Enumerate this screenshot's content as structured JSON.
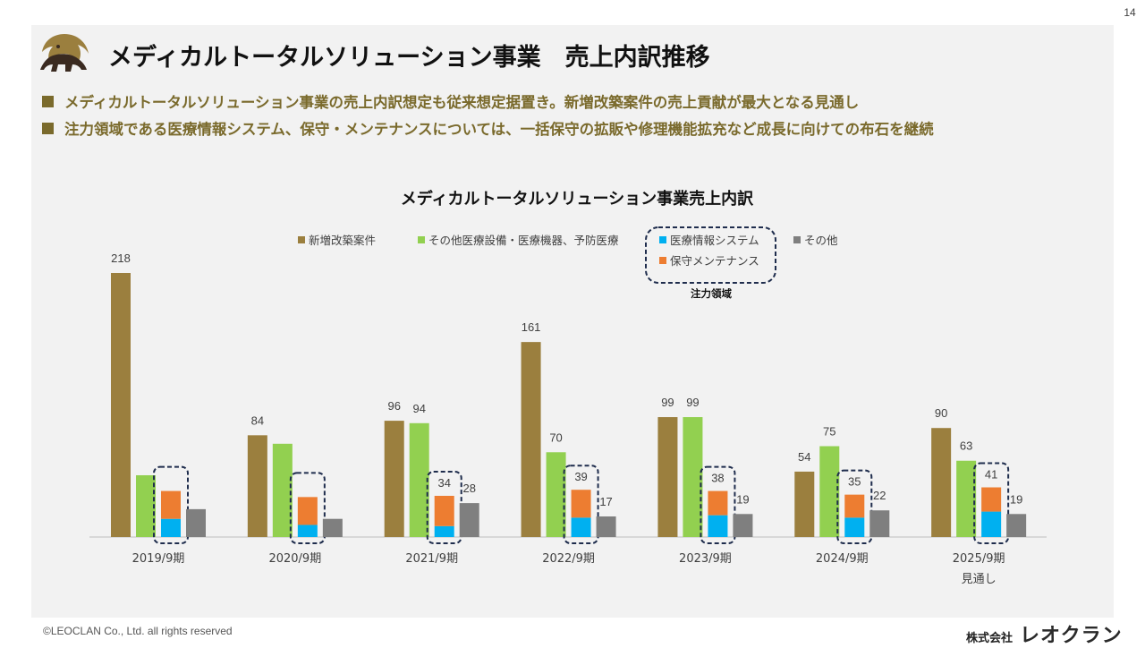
{
  "page_number": "14",
  "header": {
    "title": "メディカルトータルソリューション事業　売上内訳推移"
  },
  "bullets": [
    "メディカルトータルソリューション事業の売上内訳想定も従来想定据置き。新増改築案件の売上貢献が最大となる見通し",
    "注力領域である医療情報システム、保守・メンテナンスについては、一括保守の拡販や修理機能拡充など成長に向けての布石を継続"
  ],
  "focus_label": "注力領域",
  "footer": {
    "copyright": "©LEOCLAN Co., Ltd. all rights reserved",
    "brand_prefix": "株式会社",
    "brand_name": "レオクラン"
  },
  "chart_data": {
    "type": "bar",
    "title": "メディカルトータルソリューション事業売上内訳",
    "categories": [
      "2019/9期",
      "2020/9期",
      "2021/9期",
      "2022/9期",
      "2023/9期",
      "2024/9期",
      "2025/9期"
    ],
    "category_sublabels": [
      "",
      "",
      "",
      "",
      "",
      "",
      "見通し"
    ],
    "legend_position": "top",
    "grid": false,
    "ylim": [
      0,
      230
    ],
    "series": [
      {
        "name": "新増改築案件",
        "color": "#9b7f3e",
        "values": [
          218,
          84,
          96,
          161,
          99,
          54,
          90
        ],
        "labels": [
          "218",
          "84",
          "96",
          "161",
          "99",
          "54",
          "90"
        ]
      },
      {
        "name": "その他医療設備・医療機器、予防医療",
        "color": "#92d050",
        "values": [
          51,
          77,
          94,
          70,
          99,
          75,
          63
        ],
        "labels": [
          "",
          "",
          "94",
          "70",
          "99",
          "75",
          "63"
        ]
      },
      {
        "name": "医療情報システム",
        "color": "#00b0f0",
        "values": [
          15,
          10,
          9,
          16,
          18,
          16,
          21
        ],
        "stack": "focus"
      },
      {
        "name": "保守メンテナンス",
        "color": "#ed7d31",
        "values": [
          23,
          23,
          25,
          23,
          20,
          19,
          20
        ],
        "stack": "focus"
      },
      {
        "name": "その他",
        "color": "#7f7f7f",
        "values": [
          23,
          15,
          28,
          17,
          19,
          22,
          19
        ],
        "labels": [
          "",
          "",
          "28",
          "17",
          "19",
          "22",
          "19"
        ]
      }
    ],
    "focus_totals": [
      "",
      "",
      "34",
      "39",
      "38",
      "35",
      "41"
    ]
  }
}
